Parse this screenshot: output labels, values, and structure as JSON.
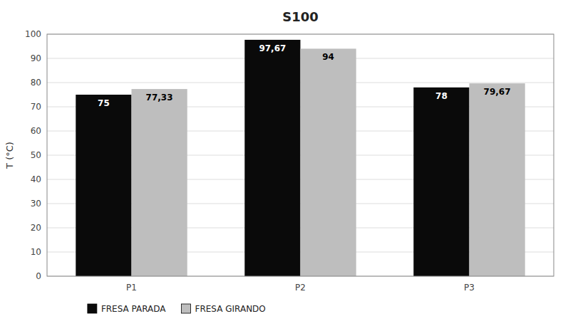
{
  "chart_data": {
    "type": "bar",
    "title": "S100",
    "y_label": "T (°C)",
    "categories": [
      "P1",
      "P2",
      "P3"
    ],
    "series": [
      {
        "name": "FRESA PARADA",
        "color": "#0a0a0a",
        "values": [
          75,
          97.67,
          78
        ],
        "value_labels": [
          "75",
          "97,67",
          "78"
        ]
      },
      {
        "name": "FRESA GIRANDO",
        "color": "#bebebe",
        "values": [
          77.33,
          94,
          79.67
        ],
        "value_labels": [
          "77,33",
          "94",
          "79,67"
        ]
      }
    ],
    "ylim": [
      0,
      100
    ],
    "yticks": [
      0,
      10,
      20,
      30,
      40,
      50,
      60,
      70,
      80,
      90,
      100
    ],
    "grid": true,
    "legend": "bottom",
    "data_labels": true
  }
}
